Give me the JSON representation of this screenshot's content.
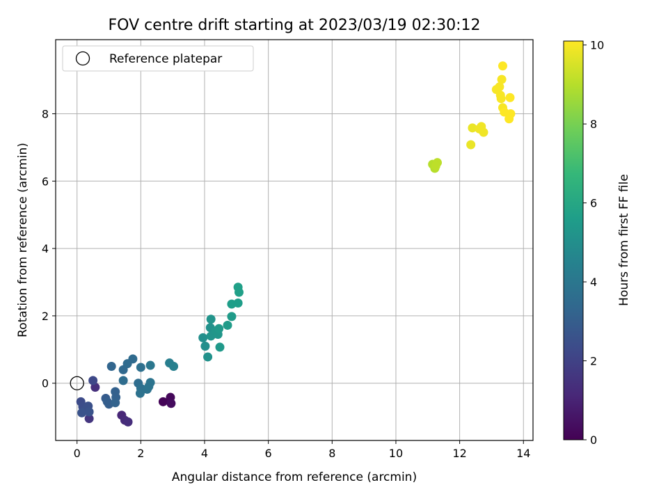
{
  "chart_data": {
    "type": "scatter",
    "title": "FOV centre drift starting at 2023/03/19 02:30:12",
    "xlabel": "Angular distance from reference (arcmin)",
    "ylabel": "Rotation from reference (arcmin)",
    "xlim": [
      -0.67,
      14.3
    ],
    "ylim": [
      -1.7,
      10.2
    ],
    "xticks": [
      0,
      2,
      4,
      6,
      8,
      10,
      12,
      14
    ],
    "yticks": [
      0,
      2,
      4,
      6,
      8
    ],
    "grid": true,
    "legend": {
      "position": "top-left",
      "entries": [
        {
          "label": "Reference platepar",
          "marker": "open-circle"
        }
      ]
    },
    "reference_point": {
      "x": 0,
      "y": 0
    },
    "colorbar": {
      "label": "Hours from first FF file",
      "colormap": "viridis",
      "range": [
        0,
        10.1
      ],
      "ticks": [
        0,
        2,
        4,
        6,
        8,
        10
      ]
    },
    "colormap_stops": [
      "#440154",
      "#482878",
      "#3e4989",
      "#31688e",
      "#26828e",
      "#1f9e89",
      "#35b779",
      "#6ece58",
      "#b5de2b",
      "#fde725"
    ],
    "points": [
      {
        "x": 2.7,
        "y": -0.55,
        "c": 0.1
      },
      {
        "x": 2.93,
        "y": -0.42,
        "c": 0.2
      },
      {
        "x": 2.95,
        "y": -0.6,
        "c": 0.3
      },
      {
        "x": 1.4,
        "y": -0.95,
        "c": 1.1
      },
      {
        "x": 1.5,
        "y": -1.1,
        "c": 1.2
      },
      {
        "x": 1.6,
        "y": -1.15,
        "c": 1.3
      },
      {
        "x": 0.57,
        "y": -0.12,
        "c": 1.4
      },
      {
        "x": 0.38,
        "y": -1.05,
        "c": 1.6
      },
      {
        "x": 0.5,
        "y": 0.08,
        "c": 2.2
      },
      {
        "x": 0.12,
        "y": -0.55,
        "c": 2.3
      },
      {
        "x": 0.18,
        "y": -0.7,
        "c": 2.4
      },
      {
        "x": 0.25,
        "y": -0.8,
        "c": 2.5
      },
      {
        "x": 0.35,
        "y": -0.68,
        "c": 2.5
      },
      {
        "x": 0.38,
        "y": -0.85,
        "c": 2.6
      },
      {
        "x": 0.15,
        "y": -0.88,
        "c": 2.6
      },
      {
        "x": 0.9,
        "y": -0.45,
        "c": 2.9
      },
      {
        "x": 0.95,
        "y": -0.55,
        "c": 3.0
      },
      {
        "x": 1.0,
        "y": -0.62,
        "c": 3.0
      },
      {
        "x": 1.2,
        "y": -0.25,
        "c": 3.1
      },
      {
        "x": 1.22,
        "y": -0.42,
        "c": 3.1
      },
      {
        "x": 1.2,
        "y": -0.58,
        "c": 3.2
      },
      {
        "x": 1.08,
        "y": 0.5,
        "c": 3.3
      },
      {
        "x": 1.45,
        "y": 0.4,
        "c": 3.4
      },
      {
        "x": 1.58,
        "y": 0.58,
        "c": 3.5
      },
      {
        "x": 1.75,
        "y": 0.72,
        "c": 3.5
      },
      {
        "x": 1.45,
        "y": 0.08,
        "c": 3.6
      },
      {
        "x": 1.92,
        "y": 0.0,
        "c": 3.6
      },
      {
        "x": 2.0,
        "y": 0.47,
        "c": 3.7
      },
      {
        "x": 2.0,
        "y": -0.15,
        "c": 3.7
      },
      {
        "x": 1.98,
        "y": -0.3,
        "c": 3.8
      },
      {
        "x": 2.2,
        "y": -0.18,
        "c": 3.8
      },
      {
        "x": 2.25,
        "y": -0.1,
        "c": 3.9
      },
      {
        "x": 2.3,
        "y": 0.02,
        "c": 3.9
      },
      {
        "x": 2.3,
        "y": 0.53,
        "c": 4.0
      },
      {
        "x": 2.9,
        "y": 0.6,
        "c": 4.3
      },
      {
        "x": 3.03,
        "y": 0.5,
        "c": 4.4
      },
      {
        "x": 3.95,
        "y": 1.35,
        "c": 5.0
      },
      {
        "x": 4.02,
        "y": 1.1,
        "c": 5.0
      },
      {
        "x": 4.1,
        "y": 0.78,
        "c": 5.1
      },
      {
        "x": 4.18,
        "y": 1.65,
        "c": 5.1
      },
      {
        "x": 4.2,
        "y": 1.9,
        "c": 5.2
      },
      {
        "x": 4.2,
        "y": 1.4,
        "c": 5.2
      },
      {
        "x": 4.35,
        "y": 1.55,
        "c": 5.3
      },
      {
        "x": 4.42,
        "y": 1.45,
        "c": 5.3
      },
      {
        "x": 4.45,
        "y": 1.62,
        "c": 5.4
      },
      {
        "x": 4.48,
        "y": 1.07,
        "c": 5.4
      },
      {
        "x": 4.72,
        "y": 1.72,
        "c": 5.5
      },
      {
        "x": 4.85,
        "y": 1.98,
        "c": 5.5
      },
      {
        "x": 4.85,
        "y": 2.35,
        "c": 5.6
      },
      {
        "x": 5.05,
        "y": 2.38,
        "c": 5.6
      },
      {
        "x": 5.05,
        "y": 2.85,
        "c": 5.7
      },
      {
        "x": 5.08,
        "y": 2.7,
        "c": 5.7
      },
      {
        "x": 11.15,
        "y": 6.5,
        "c": 9.0
      },
      {
        "x": 11.22,
        "y": 6.38,
        "c": 9.0
      },
      {
        "x": 11.3,
        "y": 6.55,
        "c": 9.1
      },
      {
        "x": 11.25,
        "y": 6.45,
        "c": 9.1
      },
      {
        "x": 12.35,
        "y": 7.08,
        "c": 9.8
      },
      {
        "x": 12.4,
        "y": 7.58,
        "c": 9.8
      },
      {
        "x": 12.62,
        "y": 7.55,
        "c": 9.9
      },
      {
        "x": 12.68,
        "y": 7.62,
        "c": 9.9
      },
      {
        "x": 12.75,
        "y": 7.45,
        "c": 9.9
      },
      {
        "x": 13.15,
        "y": 8.72,
        "c": 10.0
      },
      {
        "x": 13.25,
        "y": 8.8,
        "c": 10.0
      },
      {
        "x": 13.28,
        "y": 8.55,
        "c": 10.0
      },
      {
        "x": 13.3,
        "y": 8.45,
        "c": 10.0
      },
      {
        "x": 13.32,
        "y": 9.02,
        "c": 10.0
      },
      {
        "x": 13.35,
        "y": 8.18,
        "c": 10.0
      },
      {
        "x": 13.35,
        "y": 9.42,
        "c": 10.1
      },
      {
        "x": 13.4,
        "y": 8.05,
        "c": 10.1
      },
      {
        "x": 13.58,
        "y": 8.48,
        "c": 10.1
      },
      {
        "x": 13.6,
        "y": 8.0,
        "c": 10.1
      },
      {
        "x": 13.55,
        "y": 7.85,
        "c": 10.1
      }
    ]
  }
}
